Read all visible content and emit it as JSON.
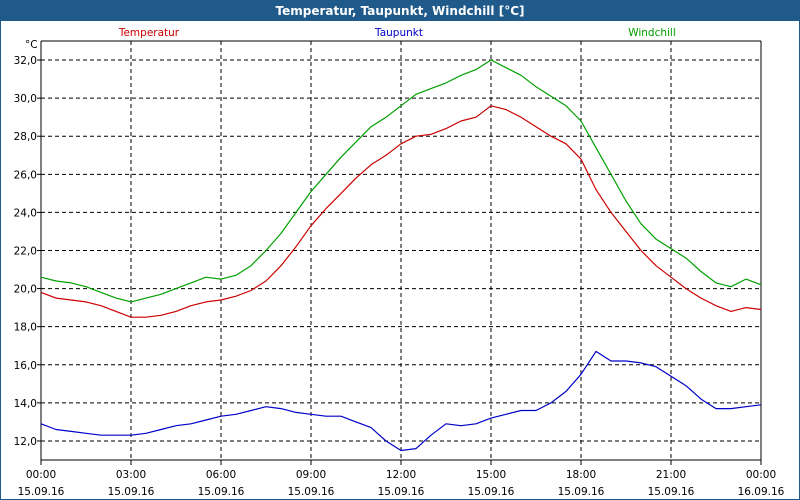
{
  "window": {
    "title": "Temperatur, Taupunkt, Windchill [°C]"
  },
  "chart_data": {
    "type": "line",
    "title": "Temperatur, Taupunkt, Windchill [°C]",
    "ylabel": "°C",
    "ylim": [
      11,
      33
    ],
    "yticks": [
      12.0,
      14.0,
      16.0,
      18.0,
      20.0,
      22.0,
      24.0,
      26.0,
      28.0,
      30.0,
      32.0
    ],
    "ytick_labels": [
      "12,0",
      "14,0",
      "16,0",
      "18,0",
      "20,0",
      "22,0",
      "24,0",
      "26,0",
      "28,0",
      "30,0",
      "32,0"
    ],
    "xlim": [
      0,
      24
    ],
    "xticks": [
      0,
      3,
      6,
      9,
      12,
      15,
      18,
      21,
      24
    ],
    "xtick_times": [
      "00:00",
      "03:00",
      "06:00",
      "09:00",
      "12:00",
      "15:00",
      "18:00",
      "21:00",
      "00:00"
    ],
    "xtick_dates": [
      "15.09.16",
      "15.09.16",
      "15.09.16",
      "15.09.16",
      "15.09.16",
      "15.09.16",
      "15.09.16",
      "15.09.16",
      "16.09.16"
    ],
    "grid": true,
    "series": [
      {
        "name": "Temperatur",
        "color": "#cc0000",
        "x": [
          0,
          0.5,
          1,
          1.5,
          2,
          2.5,
          3,
          3.5,
          4,
          4.5,
          5,
          5.5,
          6,
          6.5,
          7,
          7.5,
          8,
          8.5,
          9,
          9.5,
          10,
          10.5,
          11,
          11.5,
          12,
          12.5,
          13,
          13.5,
          14,
          14.5,
          15,
          15.5,
          16,
          16.5,
          17,
          17.5,
          18,
          18.5,
          19,
          19.5,
          20,
          20.5,
          21,
          21.5,
          22,
          22.5,
          23,
          23.5,
          24
        ],
        "values": [
          19.8,
          19.5,
          19.4,
          19.3,
          19.1,
          18.8,
          18.5,
          18.5,
          18.6,
          18.8,
          19.1,
          19.3,
          19.4,
          19.6,
          19.9,
          20.4,
          21.2,
          22.2,
          23.3,
          24.2,
          25.0,
          25.8,
          26.5,
          27.0,
          27.6,
          28.0,
          28.1,
          28.4,
          28.8,
          29.0,
          29.6,
          29.4,
          29.0,
          28.5,
          28.0,
          27.6,
          26.8,
          25.2,
          24.0,
          23.0,
          22.0,
          21.2,
          20.6,
          20.0,
          19.5,
          19.1,
          18.8,
          19.0,
          18.9
        ]
      },
      {
        "name": "Taupunkt",
        "color": "#0000c8",
        "x": [
          0,
          0.5,
          1,
          1.5,
          2,
          2.5,
          3,
          3.5,
          4,
          4.5,
          5,
          5.5,
          6,
          6.5,
          7,
          7.5,
          8,
          8.5,
          9,
          9.5,
          10,
          10.5,
          11,
          11.5,
          12,
          12.5,
          13,
          13.5,
          14,
          14.5,
          15,
          15.5,
          16,
          16.5,
          17,
          17.5,
          18,
          18.5,
          19,
          19.5,
          20,
          20.5,
          21,
          21.5,
          22,
          22.5,
          23,
          23.5,
          24
        ],
        "values": [
          12.9,
          12.6,
          12.5,
          12.4,
          12.3,
          12.3,
          12.3,
          12.4,
          12.6,
          12.8,
          12.9,
          13.1,
          13.3,
          13.4,
          13.6,
          13.8,
          13.7,
          13.5,
          13.4,
          13.3,
          13.3,
          13.0,
          12.7,
          12.0,
          11.5,
          11.6,
          12.3,
          12.9,
          12.8,
          12.9,
          13.2,
          13.4,
          13.6,
          13.6,
          14.0,
          14.6,
          15.5,
          16.7,
          16.2,
          16.2,
          16.1,
          15.9,
          15.4,
          14.9,
          14.2,
          13.7,
          13.7,
          13.8,
          13.9
        ]
      },
      {
        "name": "Windchill",
        "color": "#00a000",
        "x": [
          0,
          0.5,
          1,
          1.5,
          2,
          2.5,
          3,
          3.5,
          4,
          4.5,
          5,
          5.5,
          6,
          6.5,
          7,
          7.5,
          8,
          8.5,
          9,
          9.5,
          10,
          10.5,
          11,
          11.5,
          12,
          12.5,
          13,
          13.5,
          14,
          14.5,
          15,
          15.5,
          16,
          16.5,
          17,
          17.5,
          18,
          18.5,
          19,
          19.5,
          20,
          20.5,
          21,
          21.5,
          22,
          22.5,
          23,
          23.5,
          24
        ],
        "values": [
          20.6,
          20.4,
          20.3,
          20.1,
          19.8,
          19.5,
          19.3,
          19.5,
          19.7,
          20.0,
          20.3,
          20.6,
          20.5,
          20.7,
          21.2,
          22.0,
          22.9,
          24.0,
          25.1,
          26.0,
          26.9,
          27.7,
          28.5,
          29.0,
          29.6,
          30.2,
          30.5,
          30.8,
          31.2,
          31.5,
          32.0,
          31.6,
          31.2,
          30.6,
          30.1,
          29.6,
          28.8,
          27.4,
          26.0,
          24.6,
          23.4,
          22.6,
          22.1,
          21.6,
          20.9,
          20.3,
          20.1,
          20.5,
          20.2
        ]
      }
    ]
  }
}
